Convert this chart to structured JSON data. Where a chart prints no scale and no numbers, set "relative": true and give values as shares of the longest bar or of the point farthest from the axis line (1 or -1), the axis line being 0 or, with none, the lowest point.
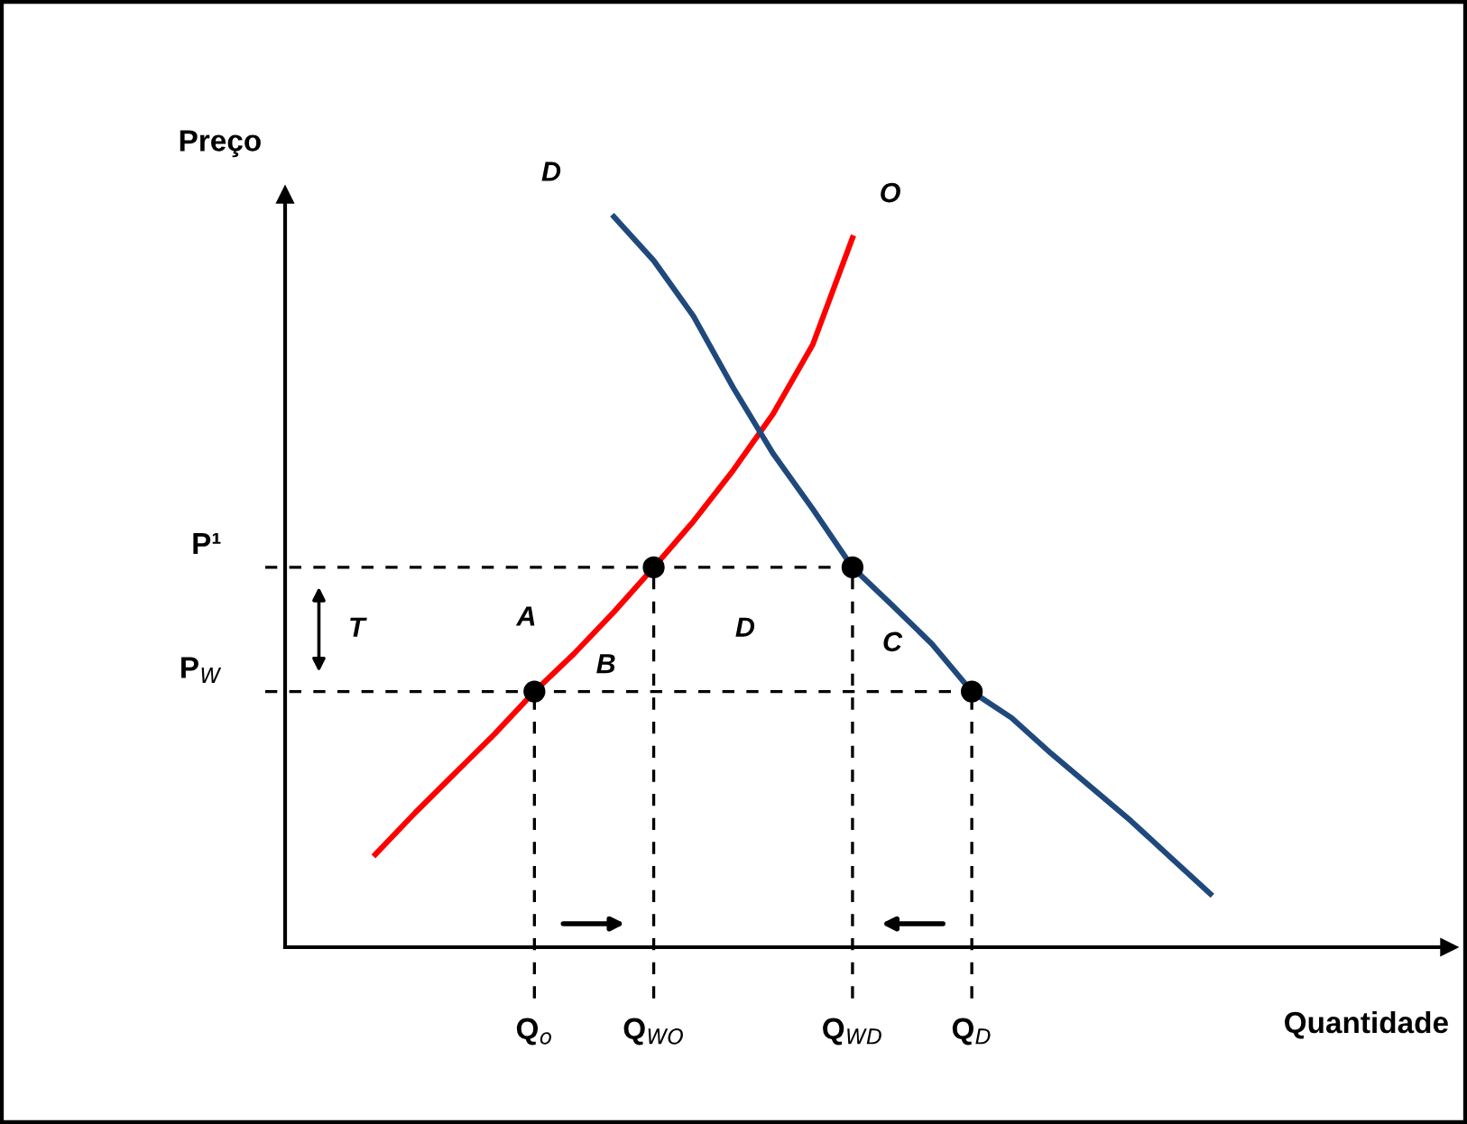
{
  "chart_data": {
    "type": "line",
    "relative": true,
    "xlabel": "Quantidade",
    "ylabel": "Preço",
    "categories": [
      null,
      null,
      null,
      null,
      null,
      "Q$_{o}$",
      null,
      null,
      "Q$_{WO}$",
      null,
      null,
      null,
      null,
      "Q$_{WD}$",
      null,
      null,
      "Q$_{D}$",
      null,
      null,
      null,
      null,
      null,
      null
    ],
    "series": [
      {
        "name": "O",
        "color": "#ff0000",
        "values": [
          null,
          0.127,
          0.184,
          0.238,
          0.292,
          0.35,
          0.402,
          0.459,
          0.52,
          0.583,
          0.653,
          0.73,
          0.825,
          0.971,
          null,
          null,
          null,
          null,
          null,
          null,
          null,
          null,
          null
        ]
      },
      {
        "name": "D",
        "color": "#1f497d",
        "values": [
          null,
          null,
          null,
          null,
          null,
          null,
          null,
          1.0,
          0.94,
          0.864,
          0.766,
          0.676,
          0.6,
          0.52,
          0.468,
          0.415,
          0.35,
          0.314,
          0.265,
          0.219,
          0.173,
          0.123,
          0.073
        ]
      },
      {
        "type": "scatter",
        "color": "#000000",
        "marker": "circle",
        "values": [
          null,
          null,
          null,
          null,
          null,
          0.35,
          null,
          null,
          0.52,
          null,
          null,
          null,
          null,
          0.52,
          null,
          null,
          0.35,
          null,
          null,
          null,
          null,
          null,
          null
        ]
      }
    ],
    "ref_lines": [
      {
        "axis": "y",
        "value": 0.52,
        "label": "P¹",
        "line_style": "dashed",
        "color": "#000000"
      },
      {
        "axis": "y",
        "value": 0.35,
        "label": "P$_{W}$",
        "line_style": "dashed",
        "color": "#000000"
      },
      {
        "axis": "x",
        "value": "Q$_{o}$",
        "line_style": "dashed",
        "color": "#000000"
      },
      {
        "axis": "x",
        "value": "Q$_{WO}$",
        "line_style": "dashed",
        "color": "#000000"
      },
      {
        "axis": "x",
        "value": "Q$_{WD}$",
        "line_style": "dashed",
        "color": "#000000"
      },
      {
        "axis": "x",
        "value": "Q$_{D}$",
        "line_style": "dashed",
        "color": "#000000"
      }
    ],
    "annotations": [
      "T",
      "A",
      "B",
      "D",
      "C"
    ],
    "legend": false
  }
}
